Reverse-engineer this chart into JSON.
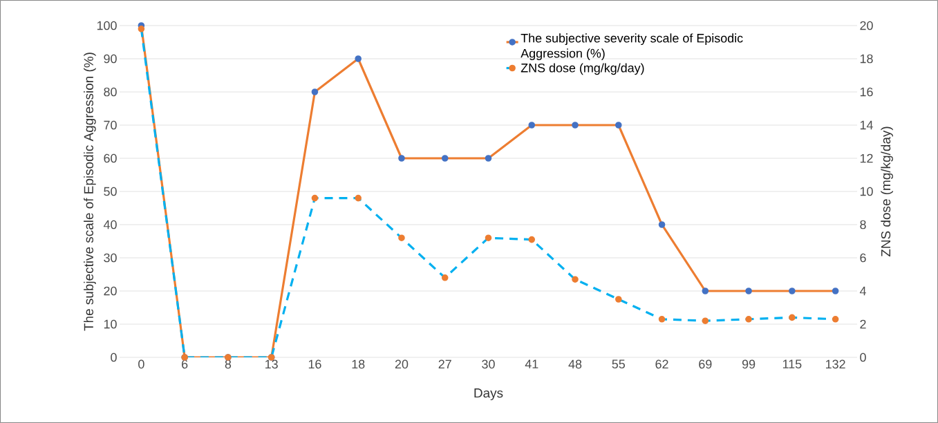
{
  "chart_data": {
    "type": "line",
    "xlabel": "Days",
    "ylabel": "The subjective scale of Episodic Aggression (%)",
    "y2label": "ZNS dose (mg/kg/day)",
    "categories": [
      "0",
      "6",
      "8",
      "13",
      "16",
      "18",
      "20",
      "27",
      "30",
      "41",
      "48",
      "55",
      "62",
      "69",
      "99",
      "115",
      "132"
    ],
    "series": [
      {
        "name": "The subjective severity scale of Episodic Aggression (%)",
        "color": "#ed7d31",
        "line_style": "solid",
        "values": [
          100,
          0,
          0,
          0,
          80,
          90,
          60,
          60,
          60,
          70,
          70,
          70,
          40,
          20,
          20,
          20,
          20
        ]
      },
      {
        "name": "ZNS dose (mg/kg/day)",
        "color": "#00b0f0",
        "line_style": "dashed",
        "axis": "y2",
        "values": [
          19.8,
          0,
          0,
          0,
          9.6,
          9.6,
          7.2,
          4.8,
          7.2,
          7.1,
          4.7,
          3.5,
          2.3,
          2.2,
          2.3,
          2.4,
          2.3
        ]
      }
    ],
    "ylim": [
      0,
      100
    ],
    "yticks": [
      0,
      10,
      20,
      30,
      40,
      50,
      60,
      70,
      80,
      90,
      100
    ],
    "y2lim": [
      0,
      20
    ],
    "y2ticks": [
      0,
      2,
      4,
      6,
      8,
      10,
      12,
      14,
      16,
      18,
      20
    ],
    "grid": "y",
    "legend": "top right",
    "marker": "circle"
  }
}
